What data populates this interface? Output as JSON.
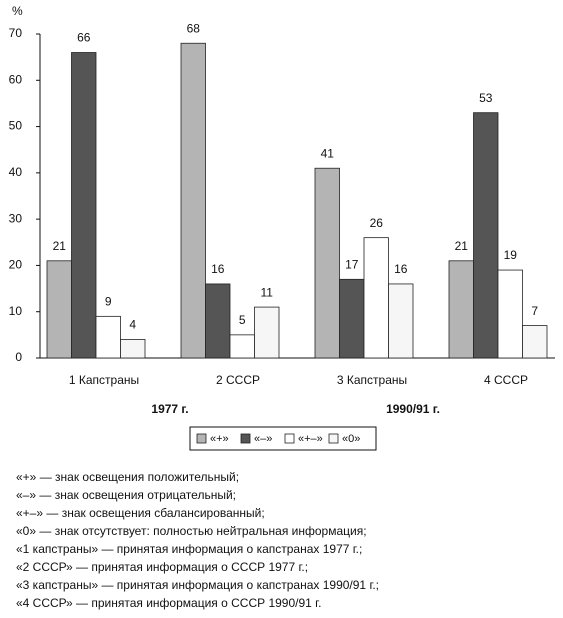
{
  "chart_data": {
    "type": "bar",
    "y_label": "%",
    "categories": [
      "1 Капстраны",
      "2 СССР",
      "3 Капстраны",
      "4 СССР"
    ],
    "series": [
      {
        "name": "«+»",
        "color": "#b4b4b4",
        "values": [
          21,
          68,
          41,
          21
        ]
      },
      {
        "name": "«–»",
        "color": "#555555",
        "values": [
          66,
          16,
          17,
          53
        ]
      },
      {
        "name": "«+–»",
        "color": "#ffffff",
        "values": [
          9,
          5,
          26,
          19
        ]
      },
      {
        "name": "«0»",
        "color": "#f6f6f6",
        "values": [
          4,
          11,
          16,
          7
        ]
      }
    ],
    "ylim": [
      0,
      70
    ],
    "yticks": [
      0,
      10,
      20,
      30,
      40,
      50,
      60,
      70
    ],
    "grid": false,
    "periods": [
      "1977 г.",
      "1990/91 г."
    ]
  },
  "footnotes": [
    "«+» — знак освещения положительный;",
    "«–» — знак освещения отрицательный;",
    "«+–» — знак освещения сбалансированный;",
    "«0» — знак отсутствует: полностью нейтральная информация;",
    "«1 капстраны» — принятая информация о капстранах 1977 г.;",
    "«2 СССР» — принятая информация о СССР 1977 г.;",
    "«3 капстраны» — принятая информация о капстранах 1990/91 г.;",
    "«4 СССР» — принятая информация о СССР 1990/91 г."
  ]
}
